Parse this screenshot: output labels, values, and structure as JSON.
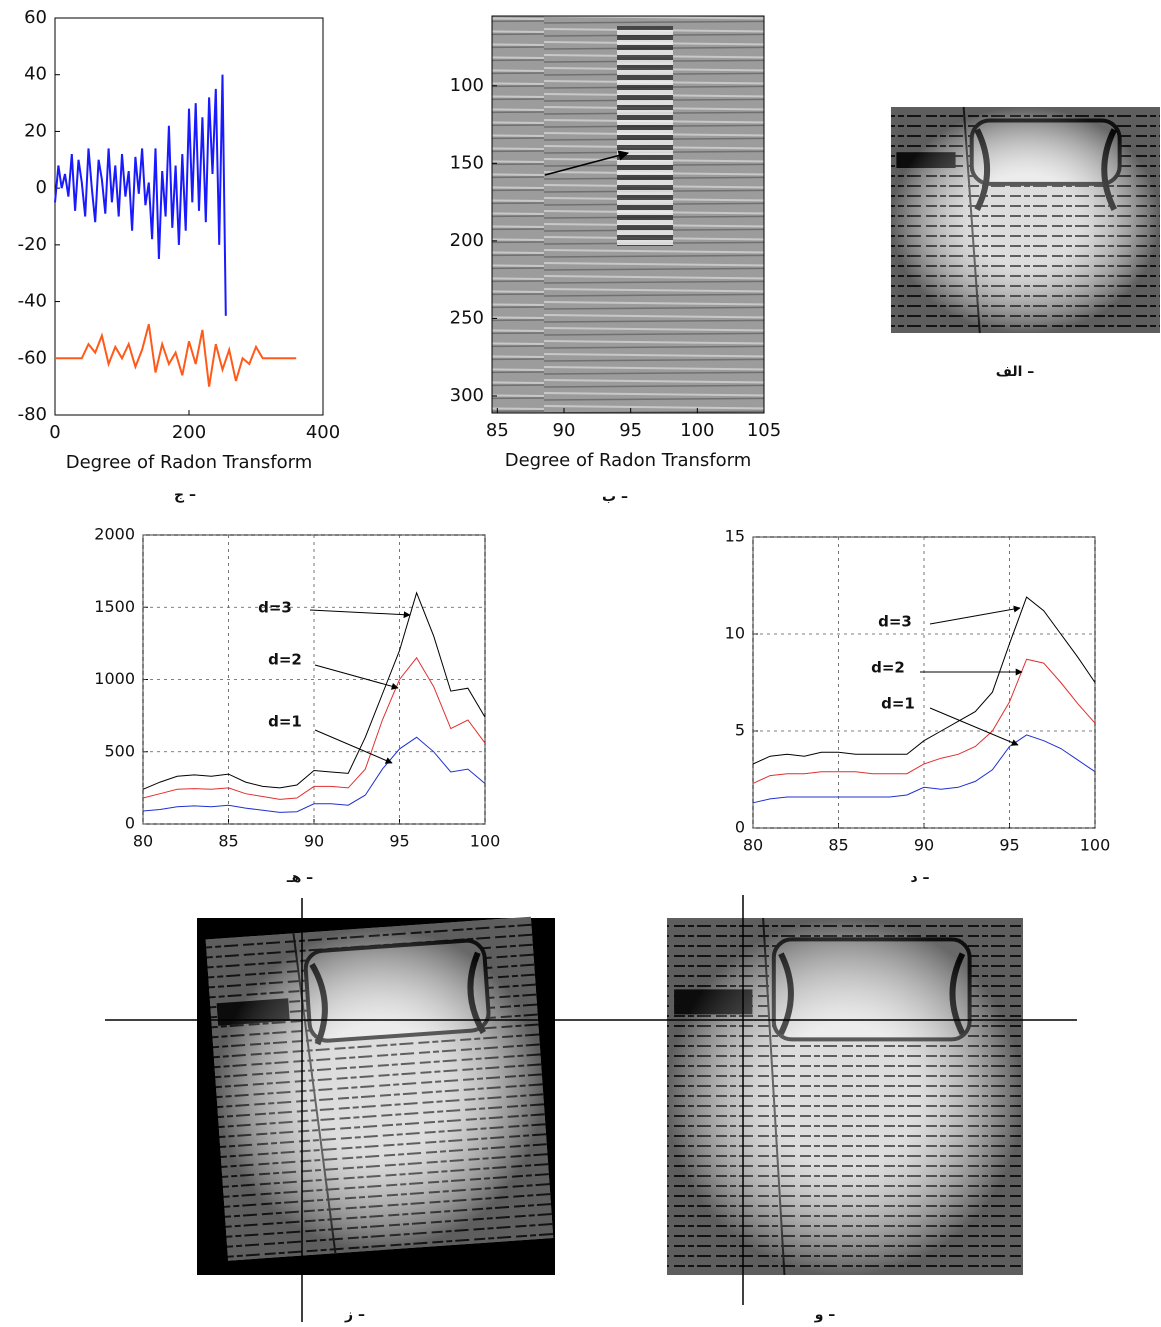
{
  "chart_data": [
    {
      "type": "line",
      "xlabel": "Degree of Radon Transform",
      "caption": "ج –",
      "xlim": [
        0,
        400
      ],
      "xticks": [
        0,
        200,
        400
      ],
      "ylim": [
        -80,
        60
      ],
      "yticks": [
        -80,
        -60,
        -40,
        -20,
        0,
        20,
        40,
        60
      ],
      "grid": false,
      "series": [
        {
          "color": "#1a1aff",
          "x": [
            0,
            5,
            10,
            15,
            20,
            25,
            30,
            35,
            40,
            45,
            50,
            55,
            60,
            65,
            70,
            75,
            80,
            85,
            90,
            95,
            100,
            105,
            110,
            115,
            120,
            125,
            130,
            135,
            140,
            145,
            150,
            155,
            160,
            165,
            170,
            175,
            180,
            185,
            190,
            195,
            200,
            205,
            210,
            215,
            220,
            225,
            230,
            235,
            240,
            245,
            250,
            255
          ],
          "values": [
            -5,
            8,
            0,
            5,
            -3,
            12,
            -8,
            10,
            2,
            -10,
            14,
            0,
            -12,
            10,
            3,
            -9,
            14,
            -5,
            8,
            -10,
            12,
            -3,
            6,
            -15,
            11,
            -2,
            14,
            -6,
            2,
            -18,
            14,
            -25,
            6,
            -10,
            22,
            -14,
            8,
            -20,
            12,
            -15,
            28,
            -5,
            30,
            -8,
            25,
            -12,
            32,
            5,
            35,
            -20,
            40,
            -45
          ]
        },
        {
          "color": "#ff5a1a",
          "x": [
            0,
            10,
            20,
            30,
            40,
            50,
            60,
            70,
            80,
            90,
            100,
            110,
            120,
            130,
            140,
            150,
            160,
            170,
            180,
            190,
            200,
            210,
            220,
            230,
            240,
            250,
            260,
            270,
            280,
            290,
            300,
            310,
            320,
            330,
            340,
            350,
            360
          ],
          "values": [
            -60,
            -60,
            -60,
            -60,
            -60,
            -55,
            -58,
            -52,
            -62,
            -56,
            -60,
            -55,
            -63,
            -57,
            -48,
            -65,
            -55,
            -62,
            -58,
            -66,
            -54,
            -62,
            -50,
            -70,
            -55,
            -64,
            -57,
            -68,
            -60,
            -62,
            -56,
            -60,
            -60,
            -60,
            -60,
            -60,
            -60
          ]
        }
      ]
    },
    {
      "type": "image",
      "xlabel": "Degree of Radon Transform",
      "caption": "ب –",
      "xlim": [
        84.6,
        105
      ],
      "xticks": [
        85,
        90,
        95,
        100,
        105
      ],
      "ylim": [
        55,
        311
      ],
      "yticks": [
        100,
        150,
        200,
        250,
        300
      ],
      "yreverse": true
    },
    {
      "type": "image",
      "caption": "الف –"
    },
    {
      "type": "line",
      "caption": "هـ –",
      "xlim": [
        80,
        100
      ],
      "xticks": [
        80,
        85,
        90,
        95,
        100
      ],
      "ylim": [
        0,
        2000
      ],
      "yticks": [
        0,
        500,
        1000,
        1500,
        2000
      ],
      "grid": true,
      "x": [
        80,
        81,
        82,
        83,
        84,
        85,
        86,
        87,
        88,
        89,
        90,
        91,
        92,
        93,
        94,
        95,
        96,
        97,
        98,
        99,
        100
      ],
      "series": [
        {
          "color": "#000000",
          "values": [
            240,
            290,
            330,
            340,
            330,
            345,
            290,
            260,
            250,
            270,
            370,
            360,
            350,
            600,
            900,
            1200,
            1600,
            1300,
            920,
            940,
            740
          ]
        },
        {
          "color": "#e03030",
          "values": [
            180,
            210,
            240,
            245,
            240,
            250,
            210,
            190,
            170,
            180,
            260,
            260,
            250,
            380,
            720,
            1000,
            1150,
            950,
            660,
            720,
            560
          ]
        },
        {
          "color": "#2030d0",
          "values": [
            90,
            100,
            120,
            125,
            120,
            130,
            110,
            95,
            80,
            85,
            140,
            140,
            130,
            200,
            380,
            520,
            600,
            500,
            360,
            380,
            280
          ]
        }
      ],
      "annotations": [
        "d=3",
        "d=2",
        "d=1"
      ]
    },
    {
      "type": "line",
      "caption": "د –",
      "xlim": [
        80,
        100
      ],
      "xticks": [
        80,
        85,
        90,
        95,
        100
      ],
      "ylim": [
        0,
        15
      ],
      "yticks": [
        0,
        5,
        10,
        15
      ],
      "grid": true,
      "x": [
        80,
        81,
        82,
        83,
        84,
        85,
        86,
        87,
        88,
        89,
        90,
        91,
        92,
        93,
        94,
        95,
        96,
        97,
        98,
        99,
        100
      ],
      "series": [
        {
          "color": "#000000",
          "values": [
            3.3,
            3.7,
            3.8,
            3.7,
            3.9,
            3.9,
            3.8,
            3.8,
            3.8,
            3.8,
            4.5,
            5.0,
            5.5,
            6.0,
            7.0,
            9.5,
            11.9,
            11.2,
            10.0,
            8.8,
            7.5
          ]
        },
        {
          "color": "#e03030",
          "values": [
            2.3,
            2.7,
            2.8,
            2.8,
            2.9,
            2.9,
            2.9,
            2.8,
            2.8,
            2.8,
            3.3,
            3.6,
            3.8,
            4.2,
            5.0,
            6.5,
            8.7,
            8.5,
            7.5,
            6.4,
            5.4
          ]
        },
        {
          "color": "#2030d0",
          "values": [
            1.3,
            1.5,
            1.6,
            1.6,
            1.6,
            1.6,
            1.6,
            1.6,
            1.6,
            1.7,
            2.1,
            2.0,
            2.1,
            2.4,
            3.0,
            4.2,
            4.8,
            4.5,
            4.1,
            3.5,
            2.9
          ]
        }
      ],
      "annotations": [
        "d=3",
        "d=2",
        "d=1"
      ]
    },
    {
      "type": "image",
      "caption": "ز –"
    },
    {
      "type": "image",
      "caption": "و –"
    }
  ]
}
